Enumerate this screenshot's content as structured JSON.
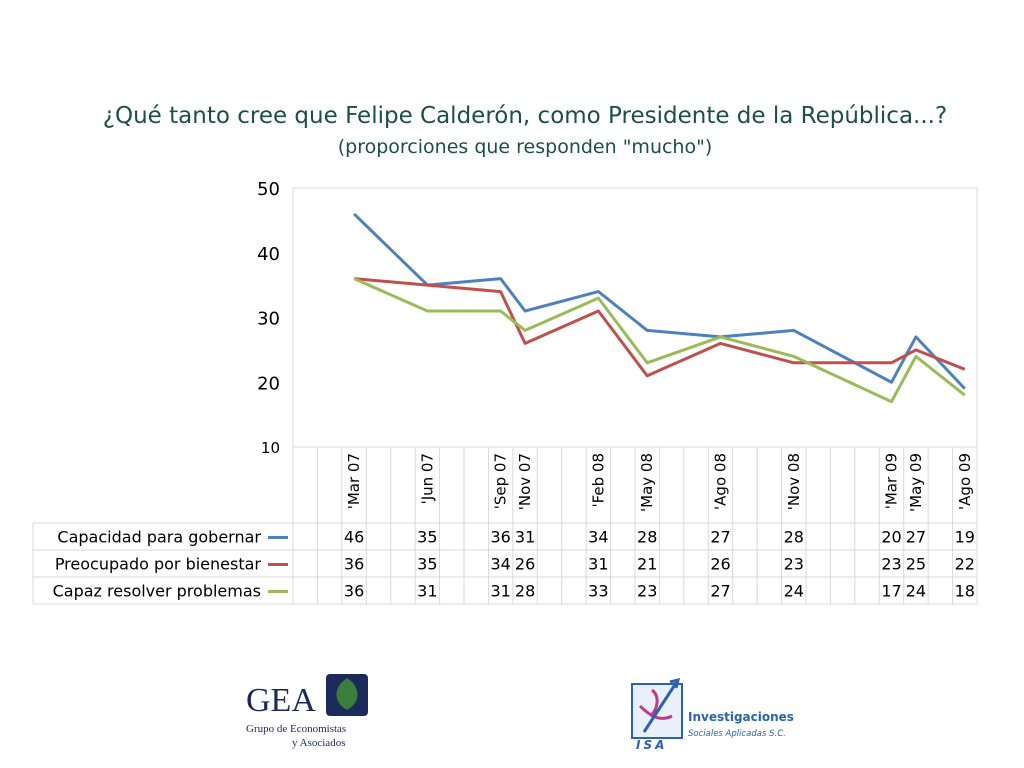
{
  "title": "¿Qué tanto cree que Felipe Calderón, como Presidente de la República...?",
  "subtitle": "(proporciones que responden \"mucho\")",
  "chart_data": {
    "type": "line",
    "ylim": [
      10,
      50
    ],
    "yticks": [
      10,
      20,
      30,
      40,
      50
    ],
    "grid": false,
    "legend": "table-left",
    "categories": [
      "",
      "",
      "'Mar 07",
      "",
      "",
      "'Jun 07",
      "",
      "",
      "'Sep 07",
      "'Nov 07",
      "",
      "",
      "'Feb 08",
      "",
      "'May 08",
      "",
      "",
      "'Ago 08",
      "",
      "",
      "'Nov 08",
      "",
      "",
      "",
      "'Mar 09",
      "'May 09",
      "",
      "'Ago 09"
    ],
    "series": [
      {
        "name": "Capacidad para gobernar",
        "color": "#4f81bd",
        "values": [
          null,
          null,
          46,
          null,
          null,
          35,
          null,
          null,
          36,
          31,
          null,
          null,
          34,
          null,
          28,
          null,
          null,
          27,
          null,
          null,
          28,
          null,
          null,
          null,
          20,
          27,
          null,
          19
        ]
      },
      {
        "name": "Preocupado por bienestar",
        "color": "#c0504d",
        "values": [
          null,
          null,
          36,
          null,
          null,
          35,
          null,
          null,
          34,
          26,
          null,
          null,
          31,
          null,
          21,
          null,
          null,
          26,
          null,
          null,
          23,
          null,
          null,
          null,
          23,
          25,
          null,
          22
        ]
      },
      {
        "name": "Capaz resolver problemas",
        "color": "#9bbb59",
        "values": [
          null,
          null,
          36,
          null,
          null,
          31,
          null,
          null,
          31,
          28,
          null,
          null,
          33,
          null,
          23,
          null,
          null,
          27,
          null,
          null,
          24,
          null,
          null,
          null,
          17,
          24,
          null,
          18
        ]
      }
    ]
  },
  "logos": {
    "gea": {
      "text": "GEA",
      "line1": "Grupo de Economistas",
      "line2": "y Asociados",
      "color": "#1b2a5a",
      "leaf_color": "#3b7d3a"
    },
    "isa": {
      "text": "ISA",
      "line1": "Investigaciones",
      "line2": "Sociales Aplicadas S.C.",
      "color": "#2b63b0",
      "accent": "#c0398a"
    }
  }
}
